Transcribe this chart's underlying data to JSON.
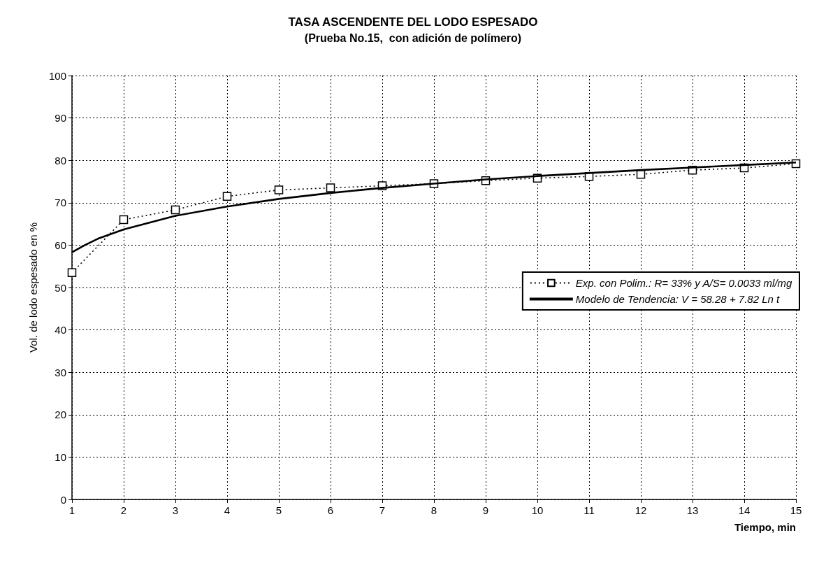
{
  "chart_data": {
    "type": "line",
    "title": "TASA ASCENDENTE DEL LODO ESPESADO",
    "subtitle": "(Prueba No.15,  con adición de polímero)",
    "xlabel": "Tiempo, min",
    "ylabel": "Vol. de lodo espesado en %",
    "xlim": [
      1,
      15
    ],
    "xticks": [
      1,
      2,
      3,
      4,
      5,
      6,
      7,
      8,
      9,
      10,
      11,
      12,
      13,
      14,
      15
    ],
    "ylim": [
      0,
      100
    ],
    "yticks": [
      0,
      10,
      20,
      30,
      40,
      50,
      60,
      70,
      80,
      90,
      100
    ],
    "grid": true,
    "legend": "right",
    "series": [
      {
        "name": "Exp. con Polim.: R= 33% y A/S= 0.0033 ml/mg",
        "color": "#000000",
        "marker": "square",
        "line_style": "dotted",
        "x": [
          1,
          2,
          3,
          4,
          5,
          6,
          7,
          8,
          9,
          10,
          11,
          12,
          13,
          14,
          15
        ],
        "values": [
          53.5,
          66,
          68.3,
          71.5,
          73,
          73.5,
          74,
          74.5,
          75.2,
          75.8,
          76.2,
          76.7,
          77.7,
          78.2,
          79.2
        ]
      },
      {
        "name": "Modelo de Tendencia: V = 58.28 + 7.82 Ln t",
        "color": "#000000",
        "marker": "none",
        "line_style": "solid",
        "x": [
          1,
          1.25,
          1.5,
          2,
          3,
          4,
          5,
          6,
          7,
          8,
          9,
          10,
          11,
          12,
          13,
          14,
          15
        ],
        "values": [
          58.3,
          60.0,
          61.5,
          63.7,
          66.9,
          69.1,
          70.9,
          72.3,
          73.5,
          74.5,
          75.5,
          76.3,
          77.0,
          77.7,
          78.3,
          78.9,
          79.5
        ]
      }
    ]
  }
}
